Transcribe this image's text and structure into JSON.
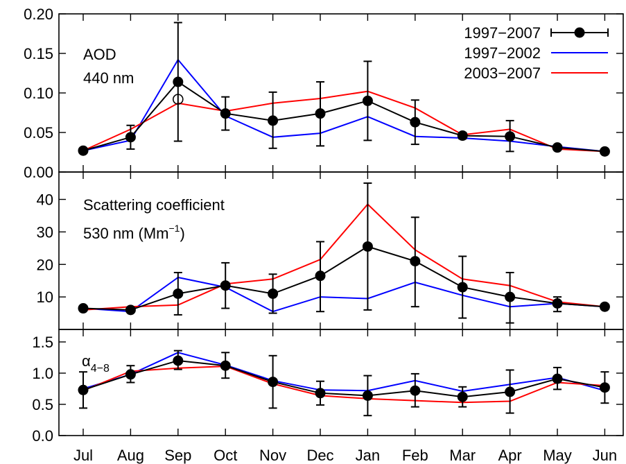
{
  "months": [
    "Jul",
    "Aug",
    "Sep",
    "Oct",
    "Nov",
    "Dec",
    "Jan",
    "Feb",
    "Mar",
    "Apr",
    "May",
    "Jun"
  ],
  "colors": {
    "all": "#000000",
    "early": "#0000ff",
    "late": "#ff0000"
  },
  "legend": [
    {
      "name": "1997−2007",
      "key": "all",
      "style": "errorbar-point"
    },
    {
      "name": "1997−2002",
      "key": "early",
      "style": "line"
    },
    {
      "name": "2003−2007",
      "key": "late",
      "style": "line"
    }
  ],
  "chart_data": [
    {
      "type": "line",
      "label": [
        "AOD",
        "440 nm"
      ],
      "ylim": [
        0.0,
        0.2
      ],
      "yticks": [
        "0.00",
        "0.05",
        "0.10",
        "0.15",
        "0.20"
      ],
      "ytick_values": [
        0.0,
        0.05,
        0.1,
        0.15,
        0.2
      ],
      "series": [
        {
          "name": "1997−2007",
          "key": "all",
          "values": [
            0.027,
            0.044,
            0.114,
            0.074,
            0.065,
            0.074,
            0.09,
            0.063,
            0.046,
            0.045,
            0.031,
            0.026
          ],
          "err_low": [
            0.027,
            0.029,
            0.039,
            0.053,
            0.03,
            0.033,
            0.04,
            0.035,
            0.042,
            0.026,
            0.031,
            0.026
          ],
          "err_high": [
            0.027,
            0.059,
            0.189,
            0.095,
            0.101,
            0.114,
            0.14,
            0.091,
            0.05,
            0.065,
            0.031,
            0.026
          ]
        },
        {
          "name": "1997−2002",
          "key": "early",
          "values": [
            0.027,
            0.04,
            0.142,
            0.071,
            0.044,
            0.049,
            0.07,
            0.045,
            0.043,
            0.039,
            0.032,
            0.026
          ]
        },
        {
          "name": "2003−2007",
          "key": "late",
          "values": [
            0.027,
            0.054,
            0.087,
            0.077,
            0.087,
            0.093,
            0.102,
            0.081,
            0.047,
            0.054,
            0.029,
            0.026
          ]
        }
      ],
      "open_point": {
        "x": "Sep",
        "y": 0.092
      }
    },
    {
      "type": "line",
      "label": [
        "Scattering coefficient",
        "530 nm (Mm",
        "−1",
        ")"
      ],
      "ylim": [
        0,
        48
      ],
      "yticks": [
        "10",
        "20",
        "30",
        "40"
      ],
      "ytick_values": [
        10,
        20,
        30,
        40
      ],
      "series": [
        {
          "name": "1997−2007",
          "key": "all",
          "values": [
            6.5,
            6.0,
            11.0,
            13.5,
            11.0,
            16.5,
            25.5,
            21.0,
            13.0,
            10.0,
            8.0,
            7.0
          ],
          "err_low": [
            6.0,
            5.5,
            4.5,
            6.5,
            5.0,
            5.5,
            6.0,
            7.0,
            3.5,
            2.0,
            5.5,
            7.0
          ],
          "err_high": [
            7.0,
            6.5,
            17.5,
            20.5,
            17.0,
            27.0,
            45.0,
            34.5,
            22.5,
            17.5,
            10.0,
            7.0
          ]
        },
        {
          "name": "1997−2002",
          "key": "early",
          "values": [
            6.5,
            5.5,
            16.0,
            13.0,
            5.5,
            10.0,
            9.5,
            14.5,
            10.5,
            7.0,
            8.0,
            7.0
          ]
        },
        {
          "name": "2003−2007",
          "key": "late",
          "values": [
            6.0,
            7.0,
            7.5,
            14.0,
            15.5,
            21.5,
            38.5,
            24.5,
            15.5,
            13.5,
            8.5,
            7.0
          ]
        }
      ]
    },
    {
      "type": "line",
      "label": [
        "α",
        "4−8"
      ],
      "ylim": [
        0.0,
        1.7
      ],
      "yticks": [
        "0.0",
        "0.5",
        "1.0",
        "1.5"
      ],
      "ytick_values": [
        0.0,
        0.5,
        1.0,
        1.5
      ],
      "series": [
        {
          "name": "1997−2007",
          "key": "all",
          "values": [
            0.73,
            0.98,
            1.2,
            1.12,
            0.86,
            0.68,
            0.64,
            0.72,
            0.62,
            0.7,
            0.91,
            0.77
          ],
          "err_low": [
            0.44,
            0.85,
            1.06,
            0.92,
            0.44,
            0.49,
            0.32,
            0.46,
            0.46,
            0.36,
            0.74,
            0.52
          ],
          "err_high": [
            1.02,
            1.12,
            1.36,
            1.33,
            1.28,
            0.87,
            0.96,
            0.99,
            0.78,
            1.05,
            1.09,
            1.02
          ]
        },
        {
          "name": "1997−2002",
          "key": "early",
          "values": [
            0.75,
            0.98,
            1.33,
            1.13,
            0.88,
            0.73,
            0.72,
            0.88,
            0.71,
            0.82,
            0.93,
            0.72
          ]
        },
        {
          "name": "2003−2007",
          "key": "late",
          "values": [
            0.72,
            1.03,
            1.08,
            1.11,
            0.83,
            0.64,
            0.59,
            0.56,
            0.53,
            0.55,
            0.85,
            0.8
          ]
        }
      ]
    }
  ]
}
